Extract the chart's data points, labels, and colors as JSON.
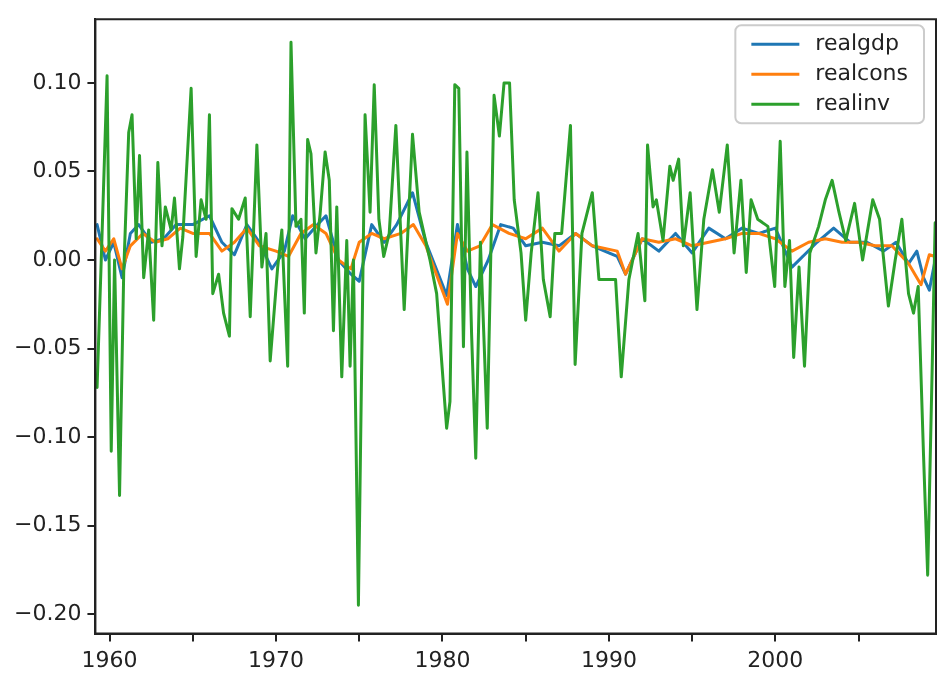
{
  "chart_data": {
    "type": "line",
    "xlim": [
      1959.15,
      2009.65
    ],
    "ylim": [
      -0.211,
      0.136
    ],
    "xticks": [
      1960,
      {
        "value": 1965,
        "label": null
      },
      1970,
      {
        "value": 1975,
        "label": null
      },
      1980,
      {
        "value": 1985,
        "label": null
      },
      1990,
      {
        "value": 1995,
        "label": null
      },
      2000,
      {
        "value": 2005,
        "label": null
      }
    ],
    "yticks": [
      {
        "value": -0.2,
        "label": "−0.20"
      },
      {
        "value": -0.15,
        "label": "−0.15"
      },
      {
        "value": -0.1,
        "label": "−0.10"
      },
      {
        "value": -0.05,
        "label": "−0.05"
      },
      {
        "value": 0,
        "label": "0.00"
      },
      {
        "value": 0.05,
        "label": "0.05"
      },
      {
        "value": 0.1,
        "label": "0.10"
      }
    ],
    "grid": false,
    "legend": "top right",
    "marker": "none",
    "line_style": "solid",
    "series": [
      {
        "name": "realgdp",
        "color": "#1f77b4",
        "x": [
          1959.25,
          1959.75,
          1960.25,
          1960.75,
          1961.25,
          1961.75,
          1962.5,
          1963.25,
          1964,
          1965,
          1966,
          1966.75,
          1967.5,
          1968.25,
          1969,
          1969.75,
          1970.5,
          1971,
          1971.75,
          1972.5,
          1973,
          1973.75,
          1974.5,
          1975,
          1975.75,
          1976.5,
          1977.25,
          1978.2,
          1979,
          1980.25,
          1980.9,
          1981.5,
          1982,
          1982.75,
          1983.5,
          1984.25,
          1985,
          1986,
          1987,
          1988,
          1989,
          1990.5,
          1991,
          1992,
          1993,
          1994,
          1995,
          1996,
          1997,
          1998,
          1999,
          2000,
          2001,
          2001.75,
          2002.5,
          2003.5,
          2004.5,
          2005.5,
          2006.5,
          2007.25,
          2008,
          2008.5,
          2008.9,
          2009.25,
          2009.6
        ],
        "values": [
          0.02,
          0.0,
          0.01,
          -0.01,
          0.015,
          0.02,
          0.01,
          0.012,
          0.02,
          0.02,
          0.025,
          0.01,
          0.003,
          0.02,
          0.01,
          -0.005,
          0.005,
          0.025,
          0.012,
          0.02,
          0.025,
          0.0,
          -0.008,
          -0.012,
          0.02,
          0.01,
          0.02,
          0.038,
          0.01,
          -0.02,
          0.02,
          -0.005,
          -0.015,
          0.0,
          0.02,
          0.018,
          0.008,
          0.01,
          0.008,
          0.015,
          0.008,
          0.002,
          -0.008,
          0.012,
          0.005,
          0.015,
          0.004,
          0.018,
          0.012,
          0.018,
          0.015,
          0.018,
          -0.004,
          0.003,
          0.01,
          0.018,
          0.01,
          0.01,
          0.005,
          0.01,
          -0.002,
          0.005,
          -0.01,
          -0.017,
          0.0
        ]
      },
      {
        "name": "realcons",
        "color": "#ff7f0e",
        "x": [
          1959.25,
          1959.75,
          1960.25,
          1960.75,
          1961.25,
          1962,
          1962.75,
          1963.5,
          1964.25,
          1965,
          1966,
          1966.75,
          1967.5,
          1968.25,
          1969,
          1970,
          1970.75,
          1971.5,
          1972.25,
          1973,
          1973.75,
          1974.5,
          1975,
          1975.75,
          1976.5,
          1977.5,
          1978.25,
          1979,
          1980.3,
          1980.9,
          1981.5,
          1982.25,
          1983,
          1984,
          1985,
          1986,
          1987,
          1988,
          1989,
          1990.5,
          1991,
          1992,
          1993,
          1994,
          1995,
          1996,
          1997,
          1998,
          1999,
          2000,
          2001,
          2002,
          2003,
          2004,
          2005,
          2006,
          2007,
          2008,
          2008.75,
          2009.25,
          2009.6
        ],
        "values": [
          0.012,
          0.005,
          0.012,
          -0.005,
          0.008,
          0.015,
          0.01,
          0.012,
          0.018,
          0.015,
          0.015,
          0.005,
          0.01,
          0.018,
          0.008,
          0.005,
          0.002,
          0.015,
          0.02,
          0.015,
          0.0,
          -0.005,
          0.01,
          0.015,
          0.012,
          0.015,
          0.02,
          0.008,
          -0.025,
          0.015,
          0.005,
          0.008,
          0.02,
          0.015,
          0.012,
          0.018,
          0.005,
          0.015,
          0.008,
          0.005,
          -0.008,
          0.012,
          0.01,
          0.012,
          0.008,
          0.01,
          0.012,
          0.015,
          0.015,
          0.012,
          0.005,
          0.01,
          0.012,
          0.01,
          0.01,
          0.008,
          0.008,
          -0.002,
          -0.014,
          0.003,
          0.002
        ]
      },
      {
        "name": "realinv",
        "color": "#2ca02c",
        "x": [
          1959.25,
          1959.5,
          1959.85,
          1960.1,
          1960.3,
          1960.6,
          1960.85,
          1961.15,
          1961.35,
          1961.6,
          1961.8,
          1962.05,
          1962.35,
          1962.65,
          1962.9,
          1963.15,
          1963.35,
          1963.7,
          1963.9,
          1964.2,
          1964.4,
          1964.9,
          1965.2,
          1965.5,
          1965.8,
          1966.0,
          1966.2,
          1966.55,
          1966.85,
          1967.2,
          1967.35,
          1967.75,
          1968.15,
          1968.45,
          1968.85,
          1969.15,
          1969.4,
          1969.65,
          1970.1,
          1970.35,
          1970.7,
          1970.9,
          1971.2,
          1971.5,
          1971.7,
          1971.9,
          1972.1,
          1972.4,
          1972.65,
          1972.95,
          1973.2,
          1973.45,
          1973.65,
          1973.95,
          1974.25,
          1974.45,
          1974.65,
          1974.95,
          1975.35,
          1975.65,
          1975.9,
          1976.18,
          1976.47,
          1976.8,
          1977.2,
          1977.7,
          1978.2,
          1978.6,
          1979.25,
          1979.65,
          1980.25,
          1980.45,
          1980.74,
          1980.98,
          1981.26,
          1981.47,
          1981.75,
          1982.0,
          1982.28,
          1982.69,
          1983.1,
          1983.42,
          1983.7,
          1984.03,
          1984.31,
          1984.72,
          1985.0,
          1985.33,
          1985.74,
          1986.06,
          1986.47,
          1986.75,
          1987.16,
          1987.69,
          1987.97,
          1988.38,
          1989.0,
          1989.4,
          1989.9,
          1990.4,
          1990.74,
          1991.2,
          1991.75,
          1992.16,
          1992.32,
          1992.65,
          1992.85,
          1993.25,
          1993.66,
          1993.86,
          1994.19,
          1994.47,
          1994.88,
          1995.29,
          1995.7,
          1996.22,
          1996.63,
          1997.11,
          1997.52,
          1997.93,
          1998.25,
          1998.54,
          1998.94,
          1999.55,
          1999.96,
          2000.29,
          2000.57,
          2000.85,
          2001.1,
          2001.42,
          2001.75,
          2002.07,
          2002.6,
          2003.0,
          2003.41,
          2003.82,
          2004.23,
          2004.76,
          2005.24,
          2005.85,
          2006.26,
          2006.79,
          2007.2,
          2007.6,
          2008.0,
          2008.3,
          2008.58,
          2008.9,
          2009.15,
          2009.43,
          2009.6
        ],
        "values": [
          -0.072,
          0.0,
          0.104,
          -0.108,
          0.0,
          -0.133,
          -0.007,
          0.072,
          0.082,
          0.012,
          0.059,
          -0.01,
          0.017,
          -0.034,
          0.055,
          0.008,
          0.03,
          0.017,
          0.035,
          -0.005,
          0.013,
          0.097,
          0.002,
          0.034,
          0.023,
          0.082,
          -0.019,
          -0.008,
          -0.03,
          -0.043,
          0.029,
          0.023,
          0.035,
          -0.032,
          0.065,
          -0.004,
          0.015,
          -0.057,
          -0.004,
          0.017,
          -0.06,
          0.123,
          0.019,
          0.023,
          -0.03,
          0.068,
          0.06,
          0.004,
          0.026,
          0.061,
          0.045,
          -0.04,
          0.03,
          -0.066,
          0.011,
          -0.06,
          0.0,
          -0.195,
          0.082,
          0.027,
          0.099,
          0.023,
          0.002,
          0.015,
          0.076,
          -0.028,
          0.071,
          0.027,
          0.0,
          -0.019,
          -0.095,
          -0.08,
          0.099,
          0.097,
          -0.049,
          0.061,
          -0.042,
          -0.112,
          0.01,
          -0.095,
          0.093,
          0.07,
          0.1,
          0.1,
          0.034,
          0.004,
          -0.034,
          0.004,
          0.038,
          -0.011,
          -0.032,
          0.015,
          0.015,
          0.076,
          -0.059,
          0.015,
          0.038,
          -0.011,
          -0.011,
          -0.011,
          -0.066,
          -0.011,
          0.015,
          -0.023,
          0.065,
          0.03,
          0.034,
          0.011,
          0.053,
          0.045,
          0.057,
          0.008,
          0.038,
          -0.028,
          0.023,
          0.051,
          0.027,
          0.065,
          0.004,
          0.045,
          -0.007,
          0.034,
          0.023,
          0.019,
          -0.015,
          0.067,
          -0.015,
          0.011,
          -0.055,
          -0.004,
          -0.06,
          0.004,
          0.019,
          0.034,
          0.045,
          0.027,
          0.011,
          0.032,
          0.0,
          0.034,
          0.023,
          -0.026,
          0.0,
          0.023,
          -0.019,
          -0.03,
          -0.015,
          -0.11,
          -0.178,
          -0.057,
          0.021
        ]
      }
    ]
  }
}
